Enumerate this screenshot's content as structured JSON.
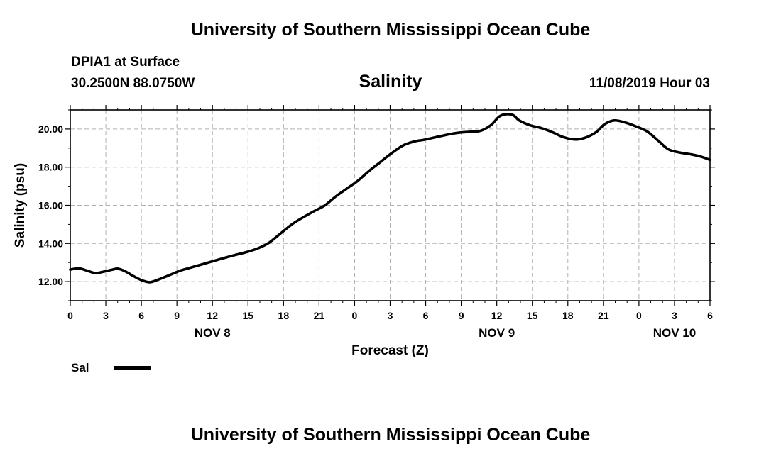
{
  "header": {
    "title": "University of Southern Mississippi Ocean Cube",
    "station": "DPIA1 at Surface",
    "coords": "30.2500N 88.0750W",
    "date": "11/08/2019 Hour 03"
  },
  "footer": {
    "title": "University of Southern Mississippi Ocean Cube"
  },
  "legend": {
    "label": "Sal",
    "color": "#000000"
  },
  "chart_data": {
    "type": "line",
    "title": "Salinity",
    "xlabel": "Forecast (Z)",
    "ylabel": "Salinity (psu)",
    "xlim": [
      0,
      54
    ],
    "ylim": [
      11,
      21
    ],
    "grid": true,
    "x_ticks": [
      0,
      3,
      6,
      9,
      12,
      15,
      18,
      21,
      24,
      27,
      30,
      33,
      36,
      39,
      42,
      45,
      48,
      51,
      54
    ],
    "x_tick_labels": [
      "0",
      "3",
      "6",
      "9",
      "12",
      "15",
      "18",
      "21",
      "0",
      "3",
      "6",
      "9",
      "12",
      "15",
      "18",
      "21",
      "0",
      "3",
      "6"
    ],
    "y_ticks": [
      12,
      14,
      16,
      18,
      20
    ],
    "y_tick_labels": [
      "12.00",
      "14.00",
      "16.00",
      "18.00",
      "20.00"
    ],
    "day_labels": [
      {
        "x": 12,
        "label": "NOV 8"
      },
      {
        "x": 36,
        "label": "NOV 9"
      },
      {
        "x": 51,
        "label": "NOV 10"
      }
    ],
    "series": [
      {
        "name": "Sal",
        "color": "#000000",
        "x": [
          0,
          0.7,
          1.4,
          2.1,
          2.8,
          3.5,
          4.0,
          4.6,
          5.3,
          6.0,
          6.7,
          7.4,
          8.4,
          9.3,
          10.3,
          11.2,
          12.2,
          13.1,
          14.0,
          15.0,
          15.9,
          16.8,
          17.8,
          18.7,
          19.6,
          20.6,
          21.5,
          22.4,
          23.4,
          24.3,
          25.2,
          26.2,
          27.1,
          28.1,
          29.0,
          29.9,
          30.9,
          31.8,
          32.7,
          33.7,
          34.6,
          35.5,
          36.2,
          36.8,
          37.4,
          37.9,
          38.8,
          39.8,
          40.7,
          41.6,
          42.6,
          43.5,
          44.4,
          45.1,
          45.9,
          46.8,
          47.7,
          48.7,
          49.6,
          50.5,
          51.5,
          52.4,
          53.3,
          54.0
        ],
        "values": [
          12.63,
          12.7,
          12.58,
          12.45,
          12.52,
          12.62,
          12.68,
          12.55,
          12.3,
          12.08,
          11.97,
          12.1,
          12.35,
          12.58,
          12.76,
          12.92,
          13.1,
          13.26,
          13.41,
          13.57,
          13.76,
          14.05,
          14.55,
          15.0,
          15.35,
          15.7,
          16.0,
          16.46,
          16.9,
          17.3,
          17.79,
          18.28,
          18.72,
          19.14,
          19.34,
          19.44,
          19.58,
          19.7,
          19.8,
          19.85,
          19.9,
          20.2,
          20.65,
          20.78,
          20.72,
          20.45,
          20.2,
          20.04,
          19.83,
          19.58,
          19.45,
          19.55,
          19.84,
          20.25,
          20.45,
          20.35,
          20.15,
          19.87,
          19.4,
          18.93,
          18.76,
          18.67,
          18.54,
          18.38
        ]
      }
    ]
  }
}
